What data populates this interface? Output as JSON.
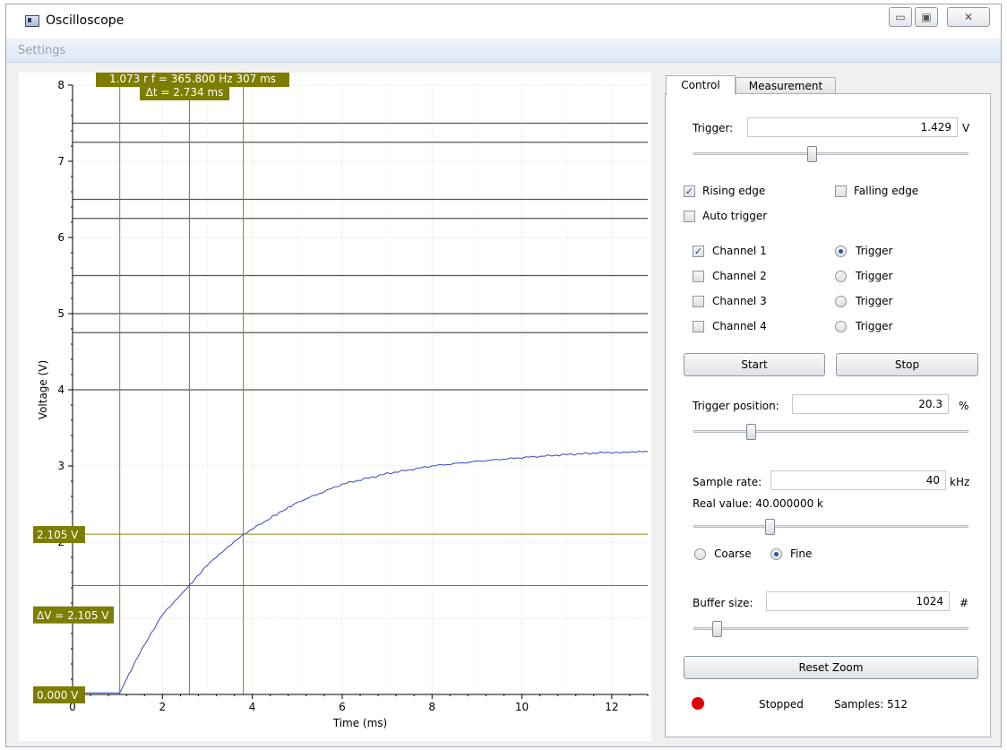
{
  "window": {
    "title": "Oscilloscope",
    "minimize": "▭",
    "maximize": "▣",
    "close": "✕"
  },
  "menu": {
    "settings": "Settings"
  },
  "plot": {
    "y_label": "Voltage (V)",
    "x_label": "Time (ms)",
    "y_ticks": [
      "8",
      "7",
      "6",
      "5",
      "4",
      "3",
      "2",
      "1",
      "0"
    ],
    "x_ticks": [
      "0",
      "2",
      "4",
      "6",
      "8",
      "10",
      "12"
    ],
    "measure_top": "1.073 r  f = 365.800 Hz  307 ms",
    "delta_t": "Δt = 2.734 ms",
    "voltage_level": "2.105 V",
    "delta_v": "ΔV = 2.105 V",
    "voltage_zero": "0.000 V",
    "colors": {
      "trace": "#3a44c8",
      "cursor_red": "#e04040",
      "cursor_olive": "#8a8a00",
      "label_bg": "#7d7d00"
    }
  },
  "chart_data": {
    "type": "line",
    "x_unit": "ms",
    "y_unit": "V",
    "xlim": [
      0,
      12.8
    ],
    "ylim": [
      0,
      8
    ],
    "series": [
      {
        "x": [
          0,
          1.05,
          1.2,
          1.5,
          2,
          2.6,
          3,
          3.8,
          4.5,
          5,
          6,
          7,
          8,
          9,
          10,
          11,
          12,
          12.8
        ],
        "y": [
          0.02,
          0.02,
          0.2,
          0.55,
          1.05,
          1.43,
          1.7,
          2.1,
          2.35,
          2.52,
          2.76,
          2.9,
          3.0,
          3.06,
          3.11,
          3.15,
          3.18,
          3.19
        ]
      }
    ],
    "horizontal_reference_lines": [
      7.5,
      7.25,
      6.5,
      6.25,
      5.5,
      5.0,
      4.75,
      4.0
    ],
    "cursors": {
      "t1": 1.05,
      "t2": 3.8,
      "trigger_time": 2.6,
      "trigger_level": 1.429,
      "level": 2.105,
      "zero": 0.0
    }
  },
  "tabs": [
    {
      "label": "Control"
    },
    {
      "label": "Measurement"
    }
  ],
  "control": {
    "trigger_label": "Trigger:",
    "trigger_value": "1.429",
    "trigger_unit": "V",
    "trigger_slider": 0.43,
    "rising_edge": "Rising edge",
    "falling_edge": "Falling edge",
    "auto_trigger": "Auto trigger",
    "channels": [
      {
        "label": "Channel 1",
        "checked": true,
        "trigger": "Trigger",
        "trigger_selected": true
      },
      {
        "label": "Channel 2",
        "checked": false,
        "trigger": "Trigger",
        "trigger_selected": false
      },
      {
        "label": "Channel 3",
        "checked": false,
        "trigger": "Trigger",
        "trigger_selected": false
      },
      {
        "label": "Channel 4",
        "checked": false,
        "trigger": "Trigger",
        "trigger_selected": false
      }
    ],
    "start": "Start",
    "stop": "Stop",
    "trigger_position_label": "Trigger position:",
    "trigger_position_value": "20.3",
    "trigger_position_unit": "%",
    "trigger_position_slider": 0.2,
    "sample_rate_label": "Sample rate:",
    "sample_rate_value": "40",
    "sample_rate_unit": "kHz",
    "real_value": "Real value: 40.000000 k",
    "sample_rate_slider": 0.27,
    "coarse": "Coarse",
    "fine": "Fine",
    "buffer_size_label": "Buffer size:",
    "buffer_size_value": "1024",
    "buffer_size_unit": "#",
    "buffer_slider": 0.07,
    "reset_zoom": "Reset Zoom",
    "status": "Stopped",
    "samples": "Samples: 512"
  }
}
